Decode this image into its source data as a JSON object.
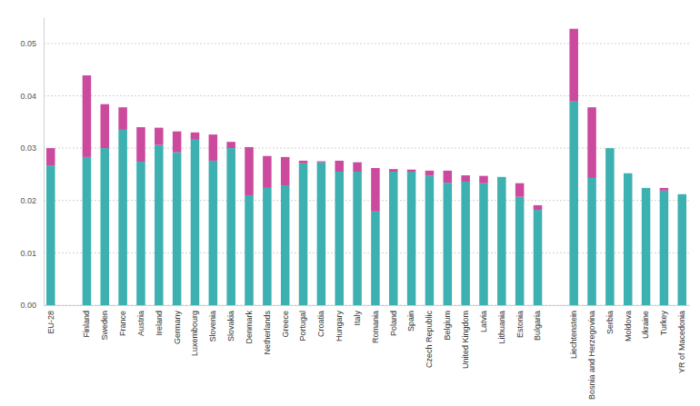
{
  "chart_data": {
    "type": "bar",
    "stacked": true,
    "grid": true,
    "categories": [
      "EU-28",
      null,
      "Finland",
      "Sweden",
      "France",
      "Austria",
      "Ireland",
      "Germany",
      "Luxembourg",
      "Slovenia",
      "Slovakia",
      "Denmark",
      "Netherlands",
      "Greece",
      "Portugal",
      "Croatia",
      "Hungary",
      "Italy",
      "Romania",
      "Poland",
      "Spain",
      "Czech Republic",
      "Belgium",
      "United Kingdom",
      "Latvia",
      "Lithuania",
      "Estonia",
      "Bulgaria",
      null,
      "Liechtenstein",
      "Bosnia and Herzegovina",
      "Serbia",
      "Moldova",
      "Ukraine",
      "Turkey",
      "YR of Macedonia"
    ],
    "series": [
      {
        "color": "#3db1b1",
        "values": [
          0.0267,
          null,
          0.0283,
          0.03,
          0.0335,
          0.0274,
          0.0306,
          0.0292,
          0.0316,
          0.0276,
          0.03,
          0.021,
          0.0224,
          0.0229,
          0.0271,
          0.0273,
          0.0255,
          0.0255,
          0.0179,
          0.0255,
          0.0255,
          0.0247,
          0.0234,
          0.0236,
          0.0233,
          0.0245,
          0.0207,
          0.0182,
          null,
          0.0389,
          0.0243,
          0.03,
          0.0252,
          0.0224,
          0.0219,
          0.0212
        ]
      },
      {
        "color": "#cc4a9e",
        "values": [
          0.0033,
          null,
          0.0156,
          0.0084,
          0.0043,
          0.0066,
          0.0033,
          0.004,
          0.0014,
          0.005,
          0.0012,
          0.0092,
          0.0061,
          0.0054,
          0.0005,
          0.0002,
          0.0021,
          0.0018,
          0.0083,
          0.0005,
          0.0004,
          0.001,
          0.0023,
          0.0012,
          0.0014,
          0,
          0.0026,
          0.0009,
          null,
          0.0139,
          0.0135,
          0,
          0,
          0,
          0.0005,
          0
        ]
      }
    ],
    "ylim": [
      0,
      0.055
    ],
    "yticks": [
      {
        "value": 0,
        "label": "0.00"
      },
      {
        "value": 0.01,
        "label": "0.01"
      },
      {
        "value": 0.02,
        "label": "0.02"
      },
      {
        "value": 0.03,
        "label": "0.03"
      },
      {
        "value": 0.04,
        "label": "0.04"
      },
      {
        "value": 0.05,
        "label": "0.05"
      }
    ]
  }
}
